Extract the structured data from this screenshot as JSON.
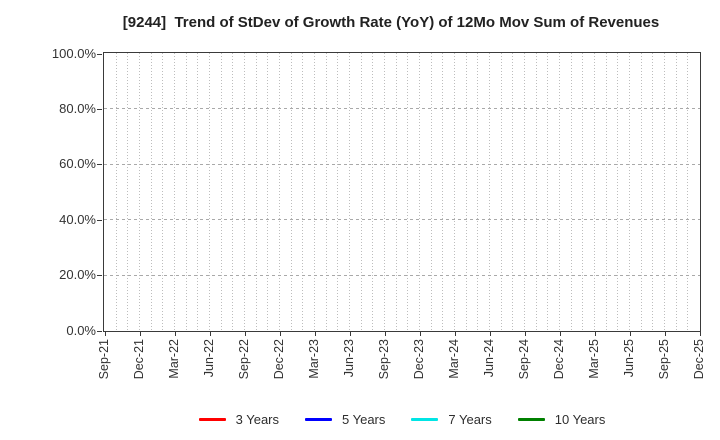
{
  "figure": {
    "background": "#ffffff"
  },
  "chart_data": {
    "type": "line",
    "title": "[9244]  Trend of StDev of Growth Rate (YoY) of 12Mo Mov Sum of Revenues",
    "x_tick_labels": [
      "Sep-21",
      "Dec-21",
      "Mar-22",
      "Jun-22",
      "Sep-22",
      "Dec-22",
      "Mar-23",
      "Jun-23",
      "Sep-23",
      "Dec-23",
      "Mar-24",
      "Jun-24",
      "Sep-24",
      "Dec-24",
      "Mar-25",
      "Jun-25",
      "Sep-25",
      "Dec-25"
    ],
    "x_minor_gridlines_per_tick_interval": 3,
    "y_ticks": [
      {
        "value": 0,
        "label": "0.0%"
      },
      {
        "value": 20,
        "label": "20.0%"
      },
      {
        "value": 40,
        "label": "40.0%"
      },
      {
        "value": 60,
        "label": "60.0%"
      },
      {
        "value": 80,
        "label": "80.0%"
      },
      {
        "value": 100,
        "label": "100.0%"
      }
    ],
    "ylim": [
      0,
      100
    ],
    "grid": true,
    "legend_position": "bottom",
    "plot_is_empty": true,
    "series": [
      {
        "name": "3 Years",
        "color": "#ff0000",
        "values": []
      },
      {
        "name": "5 Years",
        "color": "#0000ff",
        "values": []
      },
      {
        "name": "7 Years",
        "color": "#00e5e5",
        "values": []
      },
      {
        "name": "10 Years",
        "color": "#008000",
        "values": []
      }
    ]
  },
  "style": {
    "axis_color": "#3a3a3a",
    "grid_vertical_color": "#bdbdbd",
    "grid_horizontal_color": "#a9a9a9",
    "tick_label_color": "#333333",
    "title_color": "#222222"
  }
}
